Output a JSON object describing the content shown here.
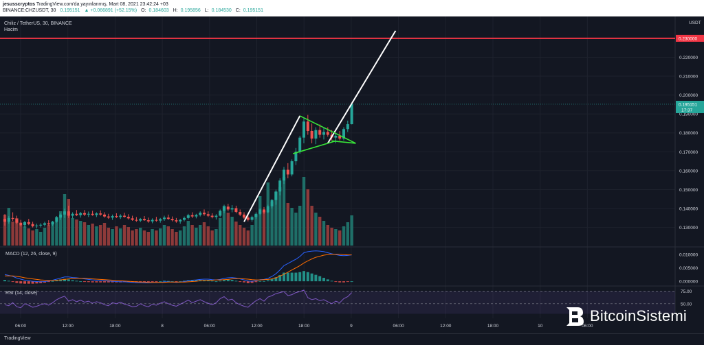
{
  "header": {
    "author": "jesusscryptos",
    "published": "TradingView.com'da yayınlanmış, Mart 08, 2021 23:42:24 +03",
    "symbol_line": "BINANCE:CHZUSDT, 30",
    "last": "0.195151",
    "change": "▲ +0.066891 (+52.15%)",
    "open": "0.184603",
    "high": "0.195856",
    "low": "0.184530",
    "close": "0.195151",
    "o_label": "O:",
    "h_label": "H:",
    "l_label": "L:",
    "c_label": "C:"
  },
  "chart_title": "Chiliz / TetherUS, 30, BINANCE",
  "volume_label": "Hacim",
  "currency": "USDT",
  "macd_label": "MACD (12, 26, close, 9)",
  "rsi_label": "RSI (14, close)",
  "footer": {
    "tv": "TradingView"
  },
  "watermark": "BitcoinSistemi",
  "colors": {
    "bg": "#131722",
    "up": "#26a69a",
    "down": "#ef5350",
    "resistance": "#f23645",
    "triangle": "#39e639",
    "trendline": "#ffffff"
  },
  "chart_data": {
    "type": "candlestick",
    "pair": "CHZUSDT",
    "interval": "30",
    "price_ticks": [
      "0.230000",
      "0.220000",
      "0.210000",
      "0.200000",
      "0.190000",
      "0.180000",
      "0.170000",
      "0.160000",
      "0.150000",
      "0.140000",
      "0.130000"
    ],
    "resistance_level": 0.23,
    "last_price": "0.195151",
    "countdown": "17:37",
    "macd_ticks": [
      "0.010000",
      "0.005000",
      "0.000000"
    ],
    "rsi_ticks": [
      "75.00",
      "50.00"
    ],
    "x_ticks": [
      "06:00",
      "12:00",
      "18:00",
      "8",
      "06:00",
      "12:00",
      "18:00",
      "9",
      "06:00",
      "12:00",
      "18:00",
      "10",
      "06:00"
    ],
    "ohlc": [
      [
        0.1345,
        0.137,
        0.131,
        0.133
      ],
      [
        0.133,
        0.136,
        0.132,
        0.135
      ],
      [
        0.135,
        0.138,
        0.1335,
        0.1345
      ],
      [
        0.1345,
        0.1362,
        0.1318,
        0.1325
      ],
      [
        0.1325,
        0.134,
        0.1305,
        0.1312
      ],
      [
        0.1312,
        0.1335,
        0.13,
        0.1328
      ],
      [
        0.1328,
        0.1345,
        0.1312,
        0.1318
      ],
      [
        0.1318,
        0.133,
        0.13,
        0.1306
      ],
      [
        0.1306,
        0.132,
        0.1295,
        0.131
      ],
      [
        0.131,
        0.1322,
        0.13,
        0.1314
      ],
      [
        0.1314,
        0.133,
        0.1305,
        0.1322
      ],
      [
        0.1322,
        0.1338,
        0.131,
        0.1316
      ],
      [
        0.1316,
        0.1335,
        0.1308,
        0.133
      ],
      [
        0.133,
        0.136,
        0.1325,
        0.1352
      ],
      [
        0.1352,
        0.1375,
        0.134,
        0.1368
      ],
      [
        0.1368,
        0.14,
        0.135,
        0.1385
      ],
      [
        0.1385,
        0.1415,
        0.135,
        0.1362
      ],
      [
        0.1362,
        0.138,
        0.1348,
        0.1372
      ],
      [
        0.1372,
        0.1392,
        0.136,
        0.1365
      ],
      [
        0.1365,
        0.1382,
        0.1352,
        0.1376
      ],
      [
        0.1376,
        0.1392,
        0.136,
        0.1368
      ],
      [
        0.1368,
        0.1384,
        0.1355,
        0.1372
      ],
      [
        0.1372,
        0.1388,
        0.1362,
        0.1366
      ],
      [
        0.1366,
        0.138,
        0.1355,
        0.1374
      ],
      [
        0.1374,
        0.139,
        0.1362,
        0.1368
      ],
      [
        0.1368,
        0.138,
        0.1352,
        0.1358
      ],
      [
        0.1358,
        0.1372,
        0.1345,
        0.1352
      ],
      [
        0.1352,
        0.1368,
        0.134,
        0.136
      ],
      [
        0.136,
        0.1375,
        0.135,
        0.1355
      ],
      [
        0.1355,
        0.137,
        0.1345,
        0.1362
      ],
      [
        0.1362,
        0.1378,
        0.1352,
        0.1356
      ],
      [
        0.1356,
        0.137,
        0.1342,
        0.1348
      ],
      [
        0.1348,
        0.1362,
        0.1335,
        0.134
      ],
      [
        0.134,
        0.1355,
        0.133,
        0.1336
      ],
      [
        0.1336,
        0.135,
        0.1328,
        0.1345
      ],
      [
        0.1345,
        0.136,
        0.1335,
        0.1338
      ],
      [
        0.1338,
        0.1352,
        0.1325,
        0.1332
      ],
      [
        0.1332,
        0.1348,
        0.1322,
        0.134
      ],
      [
        0.134,
        0.1356,
        0.133,
        0.1336
      ],
      [
        0.1336,
        0.135,
        0.1325,
        0.1344
      ],
      [
        0.1344,
        0.1362,
        0.1335,
        0.1352
      ],
      [
        0.1352,
        0.1368,
        0.134,
        0.1345
      ],
      [
        0.1345,
        0.1358,
        0.1332,
        0.1338
      ],
      [
        0.1338,
        0.135,
        0.1325,
        0.1332
      ],
      [
        0.1332,
        0.1345,
        0.132,
        0.134
      ],
      [
        0.134,
        0.1358,
        0.1332,
        0.135
      ],
      [
        0.135,
        0.1372,
        0.1342,
        0.1365
      ],
      [
        0.1365,
        0.138,
        0.135,
        0.1358
      ],
      [
        0.1358,
        0.1372,
        0.1348,
        0.1366
      ],
      [
        0.1366,
        0.1385,
        0.1358,
        0.1378
      ],
      [
        0.1378,
        0.1395,
        0.1362,
        0.137
      ],
      [
        0.137,
        0.1385,
        0.1355,
        0.1362
      ],
      [
        0.1362,
        0.1375,
        0.1348,
        0.1355
      ],
      [
        0.1355,
        0.137,
        0.1342,
        0.1362
      ],
      [
        0.1362,
        0.1395,
        0.1355,
        0.1388
      ],
      [
        0.1388,
        0.142,
        0.1375,
        0.141
      ],
      [
        0.141,
        0.1425,
        0.1385,
        0.1395
      ],
      [
        0.1395,
        0.1418,
        0.138,
        0.1402
      ],
      [
        0.1402,
        0.1415,
        0.1375,
        0.1382
      ],
      [
        0.1382,
        0.1395,
        0.136,
        0.1368
      ],
      [
        0.1368,
        0.138,
        0.1345,
        0.1352
      ],
      [
        0.1352,
        0.1365,
        0.1332,
        0.134
      ],
      [
        0.134,
        0.1362,
        0.133,
        0.1355
      ],
      [
        0.1355,
        0.138,
        0.1345,
        0.1372
      ],
      [
        0.1372,
        0.1402,
        0.1365,
        0.1395
      ],
      [
        0.1395,
        0.1408,
        0.1372,
        0.138
      ],
      [
        0.138,
        0.142,
        0.1375,
        0.1412
      ],
      [
        0.1412,
        0.145,
        0.14,
        0.1445
      ],
      [
        0.1445,
        0.15,
        0.142,
        0.149
      ],
      [
        0.149,
        0.156,
        0.147,
        0.1548
      ],
      [
        0.1548,
        0.162,
        0.153,
        0.1605
      ],
      [
        0.1605,
        0.164,
        0.156,
        0.158
      ],
      [
        0.158,
        0.166,
        0.157,
        0.165
      ],
      [
        0.165,
        0.172,
        0.163,
        0.17
      ],
      [
        0.17,
        0.1785,
        0.169,
        0.1775
      ],
      [
        0.1775,
        0.188,
        0.1745,
        0.186
      ],
      [
        0.186,
        0.1895,
        0.179,
        0.181
      ],
      [
        0.181,
        0.185,
        0.1745,
        0.177
      ],
      [
        0.177,
        0.183,
        0.174,
        0.1815
      ],
      [
        0.1815,
        0.1845,
        0.1775,
        0.179
      ],
      [
        0.179,
        0.1825,
        0.1765,
        0.1805
      ],
      [
        0.1805,
        0.183,
        0.178,
        0.179
      ],
      [
        0.179,
        0.1815,
        0.176,
        0.1775
      ],
      [
        0.1775,
        0.18,
        0.1745,
        0.1785
      ],
      [
        0.1785,
        0.181,
        0.176,
        0.177
      ],
      [
        0.177,
        0.183,
        0.176,
        0.182
      ],
      [
        0.182,
        0.1865,
        0.1805,
        0.1846
      ],
      [
        0.1846,
        0.1958,
        0.1845,
        0.1952
      ]
    ],
    "volume": [
      0.45,
      0.55,
      0.35,
      0.4,
      0.3,
      0.28,
      0.25,
      0.22,
      0.24,
      0.2,
      0.26,
      0.3,
      0.35,
      0.42,
      0.5,
      0.75,
      0.68,
      0.4,
      0.38,
      0.36,
      0.34,
      0.3,
      0.32,
      0.28,
      0.3,
      0.33,
      0.26,
      0.24,
      0.28,
      0.25,
      0.3,
      0.27,
      0.22,
      0.24,
      0.26,
      0.22,
      0.2,
      0.24,
      0.22,
      0.25,
      0.3,
      0.28,
      0.24,
      0.2,
      0.22,
      0.28,
      0.36,
      0.3,
      0.26,
      0.3,
      0.34,
      0.28,
      0.22,
      0.24,
      0.4,
      0.58,
      0.48,
      0.42,
      0.35,
      0.3,
      0.26,
      0.22,
      0.3,
      0.45,
      0.72,
      0.5,
      0.92,
      0.64,
      0.78,
      0.85,
      1.0,
      0.62,
      0.55,
      0.48,
      0.58,
      1.0,
      0.82,
      0.58,
      0.48,
      0.42,
      0.36,
      0.3,
      0.26,
      0.24,
      0.22,
      0.28,
      0.34,
      0.44
    ],
    "macd_line": [
      0.0025,
      0.0022,
      0.0018,
      0.0012,
      0.0008,
      0.0004,
      0.0002,
      0.0,
      -0.0001,
      -0.0002,
      -0.0001,
      0.0001,
      0.0004,
      0.0008,
      0.0012,
      0.0016,
      0.0016,
      0.0014,
      0.0013,
      0.0011,
      0.0009,
      0.0007,
      0.0005,
      0.0004,
      0.0003,
      0.0002,
      0.0001,
      0.0,
      -0.0001,
      -0.0002,
      -0.0002,
      -0.0003,
      -0.0004,
      -0.0005,
      -0.0005,
      -0.0006,
      -0.0006,
      -0.0005,
      -0.0005,
      -0.0004,
      -0.0002,
      -0.0002,
      -0.0003,
      -0.0004,
      -0.0003,
      -0.0001,
      0.0002,
      0.0004,
      0.0005,
      0.0007,
      0.0008,
      0.0008,
      0.0006,
      0.0005,
      0.0007,
      0.0011,
      0.0013,
      0.0014,
      0.0012,
      0.0009,
      0.0005,
      0.0001,
      0.0,
      0.0002,
      0.0006,
      0.0007,
      0.0011,
      0.0018,
      0.0028,
      0.0042,
      0.0058,
      0.0066,
      0.0074,
      0.0082,
      0.0092,
      0.0106,
      0.011,
      0.0112,
      0.0113,
      0.0112,
      0.011,
      0.0106,
      0.0102,
      0.0099,
      0.0096,
      0.0095,
      0.0096,
      0.0098
    ],
    "signal_line": [
      0.002,
      0.002,
      0.002,
      0.0018,
      0.0016,
      0.0013,
      0.0011,
      0.0009,
      0.0007,
      0.0005,
      0.0004,
      0.0003,
      0.0003,
      0.0004,
      0.0005,
      0.0007,
      0.0009,
      0.001,
      0.0011,
      0.0011,
      0.0011,
      0.001,
      0.0009,
      0.0008,
      0.0007,
      0.0006,
      0.0005,
      0.0004,
      0.0003,
      0.0002,
      0.0001,
      0.0,
      -0.0001,
      -0.0002,
      -0.0003,
      -0.0003,
      -0.0004,
      -0.0004,
      -0.0004,
      -0.0004,
      -0.0004,
      -0.0003,
      -0.0003,
      -0.0003,
      -0.0003,
      -0.0003,
      -0.0002,
      -0.0001,
      0.0,
      0.0002,
      0.0003,
      0.0004,
      0.0004,
      0.0005,
      0.0005,
      0.0006,
      0.0007,
      0.0009,
      0.001,
      0.001,
      0.0009,
      0.0008,
      0.0006,
      0.0005,
      0.0005,
      0.0006,
      0.0007,
      0.0009,
      0.0013,
      0.0019,
      0.0026,
      0.0034,
      0.0042,
      0.005,
      0.0058,
      0.0068,
      0.0076,
      0.0083,
      0.0089,
      0.0093,
      0.0097,
      0.0099,
      0.01,
      0.01,
      0.01,
      0.0099,
      0.0098,
      0.0098
    ],
    "rsi": [
      48,
      46,
      52,
      44,
      42,
      50,
      47,
      43,
      45,
      48,
      50,
      47,
      52,
      58,
      62,
      65,
      55,
      58,
      54,
      57,
      53,
      55,
      51,
      54,
      52,
      48,
      46,
      52,
      50,
      53,
      49,
      47,
      44,
      45,
      50,
      46,
      44,
      49,
      47,
      51,
      54,
      50,
      47,
      45,
      49,
      53,
      57,
      52,
      55,
      58,
      54,
      51,
      48,
      52,
      60,
      64,
      57,
      59,
      52,
      48,
      45,
      43,
      50,
      56,
      60,
      55,
      63,
      66,
      70,
      72,
      74,
      66,
      68,
      72,
      74,
      77,
      62,
      58,
      60,
      56,
      58,
      54,
      50,
      55,
      52,
      60,
      64,
      72
    ]
  }
}
